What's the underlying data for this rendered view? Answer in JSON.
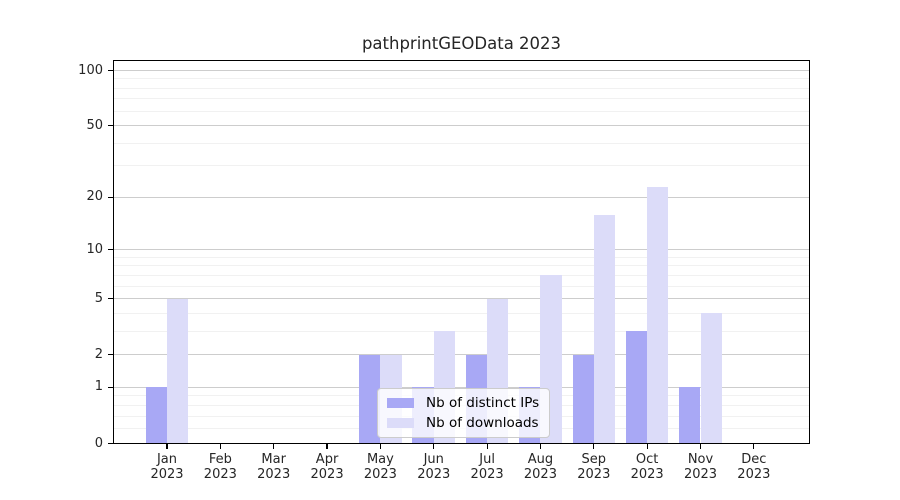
{
  "chart_data": {
    "type": "bar",
    "title": "pathprintGEOData 2023",
    "categories": [
      "Jan 2023",
      "Feb 2023",
      "Mar 2023",
      "Apr 2023",
      "May 2023",
      "Jun 2023",
      "Jul 2023",
      "Aug 2023",
      "Sep 2023",
      "Oct 2023",
      "Nov 2023",
      "Dec 2023"
    ],
    "x_tick_labels": [
      [
        "Jan",
        "2023"
      ],
      [
        "Feb",
        "2023"
      ],
      [
        "Mar",
        "2023"
      ],
      [
        "Apr",
        "2023"
      ],
      [
        "May",
        "2023"
      ],
      [
        "Jun",
        "2023"
      ],
      [
        "Jul",
        "2023"
      ],
      [
        "Aug",
        "2023"
      ],
      [
        "Sep",
        "2023"
      ],
      [
        "Oct",
        "2023"
      ],
      [
        "Nov",
        "2023"
      ],
      [
        "Dec",
        "2023"
      ]
    ],
    "series": [
      {
        "name": "Nb of distinct IPs",
        "color": "#a8a8f5",
        "values": [
          1,
          0,
          0,
          0,
          2,
          1,
          2,
          1,
          2,
          3,
          1,
          0
        ]
      },
      {
        "name": "Nb of downloads",
        "color": "#dcdcf9",
        "values": [
          5,
          0,
          0,
          0,
          2,
          3,
          5,
          7,
          16,
          23,
          4,
          0
        ]
      }
    ],
    "yscale": "log1p",
    "ylim": [
      0,
      113
    ],
    "y_ticks": {
      "values": [
        0,
        1,
        2,
        5,
        10,
        20,
        50,
        100
      ],
      "labels": [
        "0",
        "1",
        "2",
        "5",
        "10",
        "20",
        "50",
        "100"
      ]
    },
    "y_minor_gridlines": [
      0.2,
      0.4,
      0.6,
      0.8,
      3,
      4,
      6,
      7,
      8,
      9,
      30,
      40,
      60,
      70,
      80,
      90
    ],
    "grid": "horizontal",
    "legend_position": "inside-lower-center",
    "colors": {
      "major_grid": "#cdcdcd",
      "minor_grid": "#f1f1f1",
      "axis": "#000000",
      "text": "#262626"
    }
  }
}
